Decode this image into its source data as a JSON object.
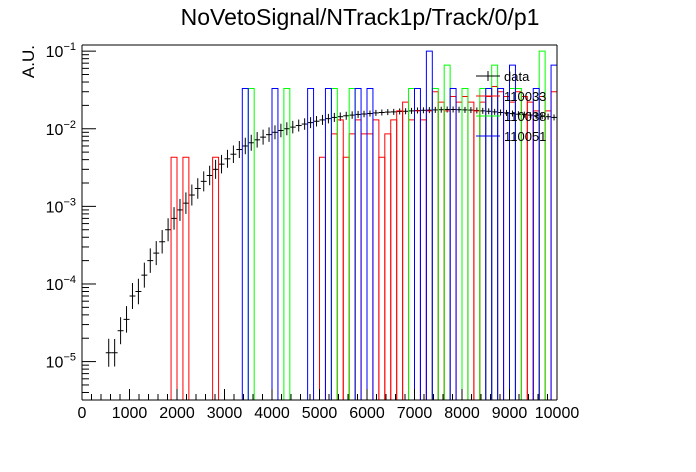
{
  "chart_data": {
    "type": "line",
    "title": "NoVetoSignal/NTrack1p/Track/0/p1",
    "xlabel": "",
    "ylabel": "A.U.",
    "xlim": [
      0,
      10000
    ],
    "ylim": [
      3.2e-06,
      0.12
    ],
    "yscale": "log",
    "bin_width": 125,
    "x_ticks": [
      0,
      1000,
      2000,
      3000,
      4000,
      5000,
      6000,
      7000,
      8000,
      9000,
      10000
    ],
    "x_tick_labels": [
      "0",
      "1000",
      "2000",
      "3000",
      "4000",
      "5000",
      "6000",
      "7000",
      "8000",
      "9000",
      "10000"
    ],
    "y_ticks": [
      1e-05,
      0.0001,
      0.001,
      0.01,
      0.1
    ],
    "y_tick_labels": [
      {
        "base": "10",
        "exp": "−5"
      },
      {
        "base": "10",
        "exp": "−4"
      },
      {
        "base": "10",
        "exp": "−3"
      },
      {
        "base": "10",
        "exp": "−2"
      },
      {
        "base": "10",
        "exp": "−1"
      }
    ],
    "legend_position": "top-right",
    "colors": {
      "data": "#000000",
      "110033": "#ff0000",
      "110038": "#00ff00",
      "110051": "#0000ff"
    },
    "series": [
      {
        "name": "data",
        "style": "points",
        "x": [
          500,
          625,
          750,
          875,
          1000,
          1125,
          1250,
          1375,
          1500,
          1625,
          1750,
          1875,
          2000,
          2125,
          2250,
          2375,
          2500,
          2625,
          2750,
          2875,
          3000,
          3125,
          3250,
          3375,
          3500,
          3625,
          3750,
          3875,
          4000,
          4125,
          4250,
          4375,
          4500,
          4625,
          4750,
          4875,
          5000,
          5125,
          5250,
          5375,
          5500,
          5625,
          5750,
          5875,
          6000,
          6125,
          6250,
          6375,
          6500,
          6625,
          6750,
          6875,
          7000,
          7125,
          7250,
          7375,
          7500,
          7625,
          7750,
          7875,
          8000,
          8125,
          8250,
          8375,
          8500,
          8625,
          8750,
          8875,
          9000,
          9125,
          9250,
          9375,
          9500,
          9625,
          9750,
          9875
        ],
        "y": [
          1.3e-05,
          1.3e-05,
          2.5e-05,
          3.5e-05,
          7e-05,
          8e-05,
          0.00013,
          0.0002,
          0.00025,
          0.00035,
          0.0005,
          0.0007,
          0.0009,
          0.0011,
          0.0014,
          0.0017,
          0.0021,
          0.0025,
          0.003,
          0.0035,
          0.0041,
          0.0047,
          0.0054,
          0.006,
          0.0066,
          0.0072,
          0.0078,
          0.0084,
          0.009,
          0.0095,
          0.01,
          0.0105,
          0.011,
          0.0115,
          0.012,
          0.0125,
          0.013,
          0.0135,
          0.014,
          0.0143,
          0.0147,
          0.015,
          0.0153,
          0.0155,
          0.0157,
          0.016,
          0.0162,
          0.0164,
          0.0165,
          0.0167,
          0.0168,
          0.017,
          0.0172,
          0.0173,
          0.0174,
          0.0175,
          0.0176,
          0.0177,
          0.0177,
          0.0176,
          0.0175,
          0.0174,
          0.0172,
          0.017,
          0.0168,
          0.0165,
          0.0162,
          0.016,
          0.0157,
          0.0154,
          0.0152,
          0.015,
          0.0147,
          0.0145,
          0.0143,
          0.014
        ]
      },
      {
        "name": "110033",
        "style": "step",
        "x": [
          1875,
          2125,
          2750,
          5000,
          5250,
          5375,
          5500,
          5625,
          5750,
          5875,
          6000,
          6125,
          6250,
          6375,
          6500,
          6625,
          6750,
          6875,
          7000,
          7125,
          7250,
          7375,
          7500,
          7625,
          7750,
          7875,
          8000,
          8125,
          8250,
          8375,
          8500,
          8625,
          8750,
          8875,
          9000,
          9125,
          9250,
          9375,
          9500,
          9625,
          9750,
          9875
        ],
        "y": [
          0.0043,
          0.0043,
          0.0043,
          0.0043,
          0.0086,
          0.013,
          0.0043,
          0.0086,
          0.013,
          0.0086,
          0.0086,
          0.013,
          0.0043,
          0.0086,
          0.013,
          0.017,
          0.022,
          0.013,
          0.017,
          0.013,
          0.017,
          0.03,
          0.022,
          0.017,
          0.026,
          0.022,
          0.026,
          0.022,
          0.017,
          0.022,
          0.026,
          0.035,
          0.03,
          0.026,
          0.022,
          0.03,
          0.026,
          0.022,
          0.017,
          0.026,
          0.017,
          0.03
        ]
      },
      {
        "name": "110038",
        "style": "step",
        "x": [
          3500,
          4250,
          5250,
          5625,
          6875,
          7375,
          7625,
          8000,
          8375,
          8625,
          9000,
          9125,
          9625
        ],
        "y": [
          0.033,
          0.033,
          0.033,
          0.033,
          0.033,
          0.033,
          0.066,
          0.033,
          0.033,
          0.066,
          0.033,
          0.033,
          0.1
        ]
      },
      {
        "name": "110051",
        "style": "step",
        "x": [
          3375,
          4000,
          4750,
          5125,
          5750,
          6000,
          7000,
          7250,
          7750,
          8500,
          8750,
          9000,
          9500,
          9875
        ],
        "y": [
          0.033,
          0.033,
          0.033,
          0.033,
          0.033,
          0.033,
          0.033,
          0.1,
          0.033,
          0.033,
          0.033,
          0.066,
          0.033,
          0.066
        ]
      }
    ]
  }
}
